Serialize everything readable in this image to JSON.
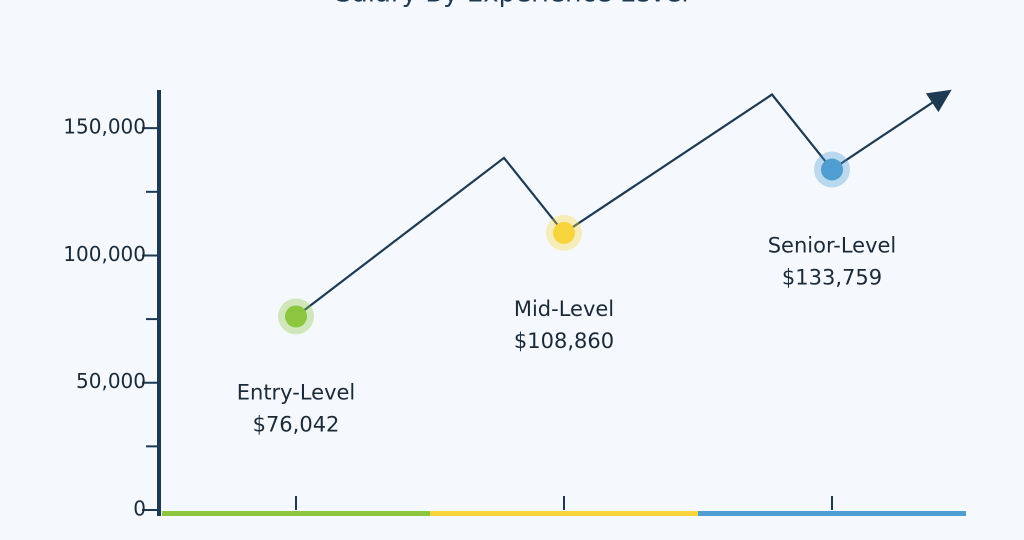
{
  "chart_data": {
    "type": "line",
    "title": "Salary By Experience Level",
    "categories": [
      "Entry-Level",
      "Mid-Level",
      "Senior-Level"
    ],
    "values": [
      76042,
      108860,
      133759
    ],
    "value_labels": [
      "$76,042",
      "$108,860",
      "$133,759"
    ],
    "colors": [
      "#8cc63f",
      "#f7d43c",
      "#509dd2"
    ],
    "line_color": "#1d3a52",
    "ylim": [
      0,
      165000
    ],
    "yticks": [
      0,
      {
        "value": 50000,
        "label": "50,000"
      },
      {
        "value": 100000,
        "label": "100,000"
      },
      {
        "value": 150000,
        "label": "150,000"
      }
    ],
    "yminorticks": [
      25000,
      75000,
      125000
    ]
  }
}
